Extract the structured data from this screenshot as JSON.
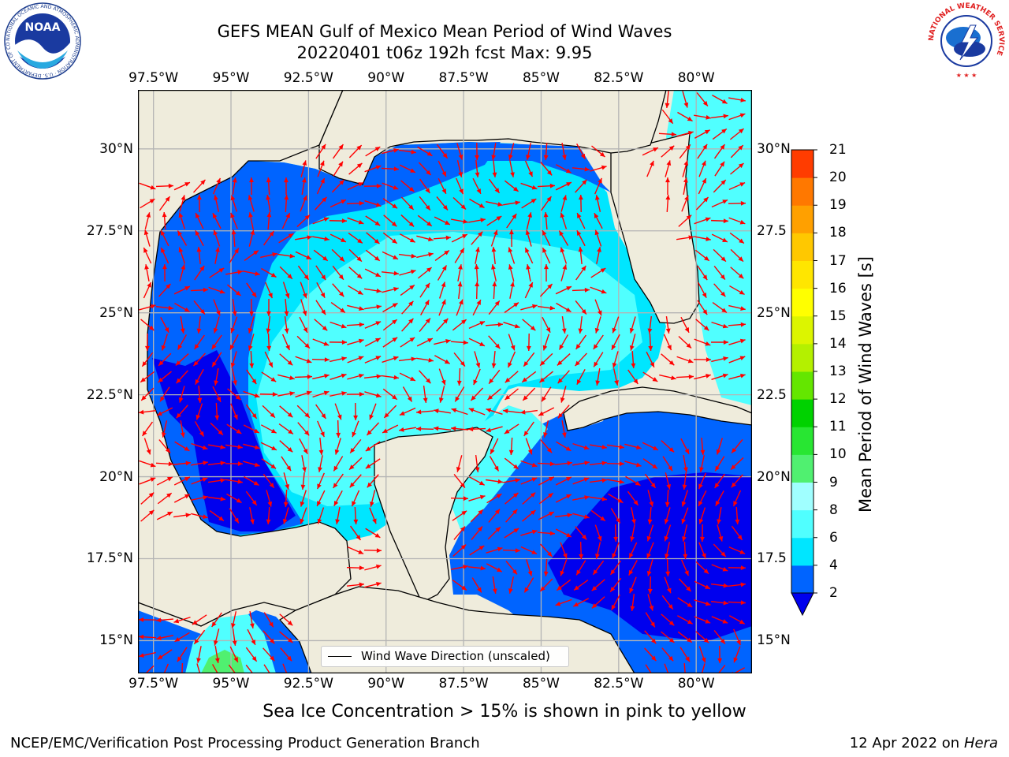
{
  "title": {
    "line1": "GEFS MEAN Gulf of Mexico Mean Period of Wind Waves",
    "line2": "20220401 t06z 192h fcst   Max: 9.95"
  },
  "map": {
    "extent": {
      "lon": [
        -98.0,
        -78.2
      ],
      "lat": [
        14.0,
        31.8
      ]
    },
    "lon_labels": [
      "97.5°W",
      "95°W",
      "92.5°W",
      "90°W",
      "87.5°W",
      "85°W",
      "82.5°W",
      "80°W"
    ],
    "lat_labels": [
      "15°N",
      "17.5°N",
      "20°N",
      "22.5°N",
      "25°N",
      "27.5°N",
      "30°N"
    ],
    "lat_labels_right": [
      "15°N",
      "17.5",
      "20°N",
      "22.5",
      "25°N",
      "27.5",
      "30°N"
    ],
    "land_color": "#efecdc",
    "grid_color": "#b4b4b4",
    "arrow_color": "#ff0000"
  },
  "colorbar": {
    "label": "Mean Period of Wind Waves [s]",
    "ticks": [
      "2",
      "4",
      "6",
      "8",
      "9",
      "10",
      "11",
      "12",
      "13",
      "14",
      "15",
      "16",
      "17",
      "18",
      "19",
      "20",
      "21"
    ],
    "levels": [
      2,
      4,
      6,
      8,
      9,
      10,
      11,
      12,
      13,
      14,
      15,
      16,
      17,
      18,
      19,
      20,
      21
    ],
    "colors": [
      "#0064ff",
      "#00e6ff",
      "#50ffff",
      "#a0ffff",
      "#50f070",
      "#28e632",
      "#00d200",
      "#64e600",
      "#b4f000",
      "#dcf500",
      "#ffff00",
      "#ffe600",
      "#ffc800",
      "#ffa000",
      "#ff7800",
      "#ff3c00",
      "#ff0000"
    ],
    "extend_color": "#0000ee"
  },
  "legend": {
    "label": "Wind Wave Direction (unscaled)"
  },
  "note": "Sea Ice Concentration > 15% is shown in pink to yellow",
  "footer": {
    "left": "NCEP/EMC/Verification Post Processing Product Generation Branch",
    "right_date": "12 Apr 2022 on ",
    "right_host": "Hera"
  },
  "logos": {
    "noaa": "NOAA",
    "noaa_ring": "NATIONAL OCEANIC AND ATMOSPHERIC ADMINISTRATION · U.S. DEPARTMENT OF COMMERCE ·",
    "nws_ring": "NATIONAL WEATHER SERVICE"
  }
}
